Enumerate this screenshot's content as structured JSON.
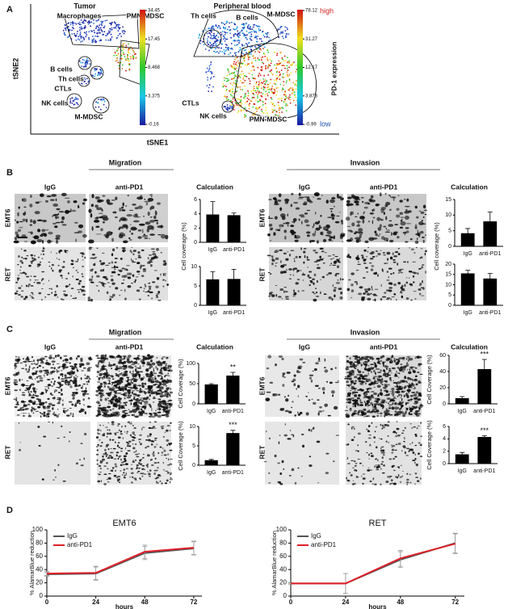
{
  "figure": {
    "panel_labels": [
      "A",
      "B",
      "C",
      "D"
    ],
    "tsne": {
      "x_label": "tSNE1",
      "y_label": "tSNE2",
      "colorbar_title": "PD-1 expression",
      "high": "high",
      "low": "low",
      "plots": [
        {
          "title": "Tumor",
          "populations": [
            "Macrophages",
            "PMN-MDSC",
            "B cells",
            "Th cells",
            "CTLs",
            "NK cells",
            "M-MDSC"
          ],
          "colorbar_ticks": [
            34.45,
            17.45,
            8.468,
            3.375,
            -0.16
          ]
        },
        {
          "title": "Peripheral blood",
          "populations": [
            "Th cells",
            "B cells",
            "M-MDSC",
            "CTLs",
            "NK cells",
            "PMN-MDSC"
          ],
          "colorbar_ticks": [
            78.12,
            31.27,
            12.17,
            3.873,
            -0.99
          ]
        }
      ]
    },
    "assays": [
      {
        "sections": [
          "Migration",
          "Invasion"
        ],
        "columns": [
          "IgG",
          "anti-PD1",
          "Calculation"
        ],
        "rows": [
          "EMT6",
          "RET"
        ]
      },
      {
        "sections": [
          "Migration",
          "Invasion"
        ],
        "columns": [
          "IgG",
          "anti-PD1",
          "Calculation"
        ],
        "rows": [
          "EMT6",
          "RET"
        ]
      }
    ]
  },
  "chart_data": [
    {
      "type": "bar",
      "categories": [
        "IgG",
        "anti-PD1"
      ],
      "values": [
        3.9,
        3.8
      ],
      "errors": [
        1.8,
        0.3
      ],
      "color": "#000000",
      "ylim": [
        0,
        6
      ],
      "yticks": [
        0,
        2,
        4,
        6
      ],
      "ylabel": "Cell coverage (%)"
    },
    {
      "type": "bar",
      "categories": [
        "IgG",
        "anti-PD1"
      ],
      "values": [
        6.7,
        6.8
      ],
      "errors": [
        2,
        2.5
      ],
      "color": "#000000",
      "ylim": [
        0,
        10
      ],
      "yticks": [
        0,
        5,
        10
      ]
    },
    {
      "type": "bar",
      "categories": [
        "IgG",
        "anti-PD1"
      ],
      "values": [
        4.2,
        8
      ],
      "errors": [
        1.5,
        3
      ],
      "color": "#000000",
      "ylim": [
        0,
        15
      ],
      "yticks": [
        0,
        5,
        10,
        15
      ],
      "ylabel": "Cell coverage (%)"
    },
    {
      "type": "bar",
      "categories": [
        "IgG",
        "anti-PD1"
      ],
      "values": [
        15.5,
        13
      ],
      "errors": [
        1.5,
        2.5
      ],
      "color": "#000000",
      "ylim": [
        0,
        20
      ],
      "yticks": [
        0,
        5,
        10,
        15,
        20
      ]
    },
    {
      "type": "bar",
      "categories": [
        "IgG",
        "anti-PD1"
      ],
      "values": [
        48,
        70
      ],
      "errors": [
        2,
        8
      ],
      "color": "#000000",
      "ylim": [
        0,
        100
      ],
      "yticks": [
        0,
        50,
        100
      ],
      "ylabel": "Cell Coverage (%)",
      "annotation": "**"
    },
    {
      "type": "bar",
      "categories": [
        "IgG",
        "anti-PD1"
      ],
      "values": [
        1.3,
        8.3
      ],
      "errors": [
        0.2,
        0.7
      ],
      "color": "#000000",
      "ylim": [
        0,
        10
      ],
      "yticks": [
        0,
        5,
        10
      ],
      "ylabel": "Cell Coverage (%)",
      "annotation": "***"
    },
    {
      "type": "bar",
      "categories": [
        "IgG",
        "anti-PD1"
      ],
      "values": [
        7,
        43
      ],
      "errors": [
        2,
        12
      ],
      "color": "#000000",
      "ylim": [
        0,
        60
      ],
      "yticks": [
        0,
        20,
        40,
        60
      ],
      "ylabel": "Cell Coverage (%)",
      "annotation": "***"
    },
    {
      "type": "bar",
      "categories": [
        "IgG",
        "anti-PD1"
      ],
      "values": [
        1.5,
        4.3
      ],
      "errors": [
        0.3,
        0.2
      ],
      "color": "#000000",
      "ylim": [
        0,
        6
      ],
      "yticks": [
        0,
        2,
        4,
        6
      ],
      "ylabel": "Cell Coverage (%)",
      "annotation": "***"
    },
    {
      "type": "line",
      "title": "EMT6",
      "x": [
        0,
        24,
        48,
        72
      ],
      "xlim": [
        0,
        76
      ],
      "xticks": [
        0,
        24,
        48,
        72
      ],
      "xlabel": "hours",
      "ylabel": "% AlamarBlue reduction",
      "ylim": [
        0,
        100
      ],
      "yticks": [
        0,
        20,
        40,
        60,
        80,
        100
      ],
      "series": [
        {
          "name": "IgG",
          "color": "#555555",
          "values": [
            33,
            34,
            65,
            72
          ],
          "errors": [
            3,
            10,
            10,
            10
          ]
        },
        {
          "name": "anti-PD1",
          "color": "#e0202a",
          "values": [
            34,
            35,
            67,
            73
          ],
          "errors": [
            3,
            10,
            10,
            10
          ]
        }
      ]
    },
    {
      "type": "line",
      "title": "RET",
      "x": [
        0,
        24,
        48,
        72
      ],
      "xlim": [
        0,
        76
      ],
      "xticks": [
        0,
        24,
        48,
        72
      ],
      "xlabel": "hours",
      "ylabel": "% AlamarBlue reduction",
      "ylim": [
        0,
        100
      ],
      "yticks": [
        0,
        20,
        40,
        60,
        80,
        100
      ],
      "series": [
        {
          "name": "IgG",
          "color": "#555555",
          "values": [
            19,
            19,
            55,
            80
          ],
          "errors": [
            1,
            15,
            12,
            15
          ]
        },
        {
          "name": "anti-PD1",
          "color": "#e0202a",
          "values": [
            19,
            19,
            57,
            79
          ],
          "errors": [
            1,
            15,
            12,
            15
          ]
        }
      ]
    }
  ]
}
